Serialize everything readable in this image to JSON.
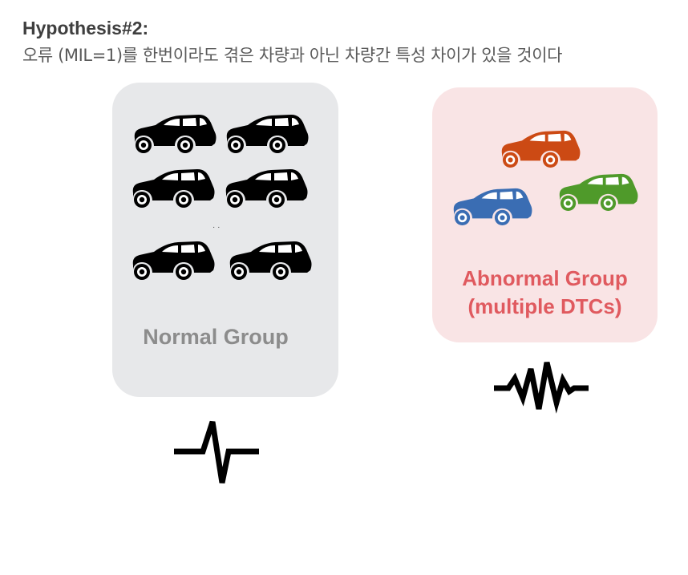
{
  "heading": "Hypothesis#2:",
  "subheading": "오류 (MIL=1)를 한번이라도 겪은 차량과 아닌 차량간 특성 차이가 있을 것이다",
  "normal_group": {
    "label": "Normal Group",
    "car_color": "#000000",
    "panel_color": "#e7e8ea",
    "label_color": "#8c8c8c",
    "cars": [
      "car",
      "car",
      "car",
      "car",
      "car",
      "car"
    ],
    "ellipsis": "· ·"
  },
  "abnormal_group": {
    "label_line1": "Abnormal Group",
    "label_line2": "(multiple DTCs)",
    "panel_color": "#f9e4e5",
    "label_color": "#e05a5f",
    "cars": [
      {
        "color": "#cc4a14"
      },
      {
        "color": "#3a6db3"
      },
      {
        "color": "#4f9a2a"
      }
    ]
  },
  "signals": {
    "normal": "single-pulse-signal-icon",
    "abnormal": "noisy-signal-icon"
  }
}
